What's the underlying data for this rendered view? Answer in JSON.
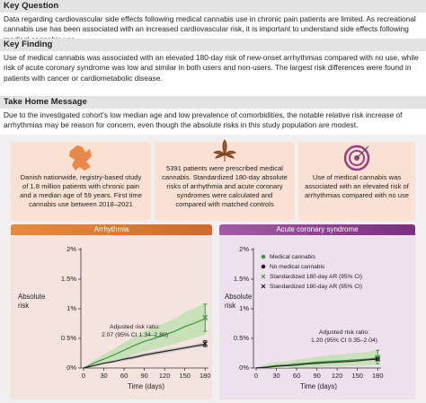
{
  "key_question": {
    "title": "Key Question",
    "text": "Data regarding cardiovascular side effects following medical cannabis use in chronic pain patients are limited. As recreational cannabis use has been associated with an increased cardiovascular risk, it is important to understand side effects following medical cannabis use."
  },
  "key_finding": {
    "title": "Key Finding",
    "text": "Use of medical cannabis was associated with an elevated 180-day risk of new-onset arrhythmias compared with no use, while risk of acute coronary syndrome was low and similar in both users and non-users. The largest risk differences were found in patients with cancer or cardiometabolic disease."
  },
  "take_home": {
    "title": "Take Home Message",
    "text": "Due to the investigated cohort's low median age and low prevalence of comorbidities, the notable relative risk increase of arrhythmias may be reason for concern, even though the absolute risks in this study population are modest."
  },
  "boxes": [
    "Danish nationwide, registry-based study of 1.8 million patients with chronic pain and a median age of 59 years. First time cannabis use between 2018–2021",
    "5391 patients were prescribed medical cannabis. Standardized 180-day absolute risks of arrhythmia and acute coronary syndromes were calculated and compared with matched controls",
    "Use of medical cannabis was associated with an elevated risk of arrhythmias compared with no use"
  ],
  "chart_data": [
    {
      "type": "line",
      "title": "Arrhythmia",
      "ylabel": "Absolute risk",
      "xlabel": "Time (days)",
      "annotation": [
        "Adjusted risk ratio:",
        "2.07 (95% CI 1.34–2.80)"
      ],
      "x": [
        0,
        15,
        30,
        45,
        60,
        75,
        90,
        105,
        120,
        135,
        150,
        165,
        180
      ],
      "xlim": [
        0,
        185
      ],
      "xticks": [
        0,
        30,
        60,
        90,
        120,
        150,
        180
      ],
      "ylim": [
        0,
        2
      ],
      "yticks": [
        {
          "value": 0,
          "label": "0%"
        },
        {
          "value": 0.5,
          "label": "0.5%"
        },
        {
          "value": 1,
          "label": "1%"
        },
        {
          "value": 1.5,
          "label": "1.5%"
        },
        {
          "value": 2,
          "label": "2%"
        }
      ],
      "series": [
        {
          "color": "#3d9a3d",
          "band_color": "#bfe0b2",
          "values": [
            0,
            0.08,
            0.15,
            0.22,
            0.3,
            0.38,
            0.45,
            0.5,
            0.56,
            0.62,
            0.7,
            0.76,
            0.83
          ],
          "ci_lower": [
            0,
            0.03,
            0.07,
            0.12,
            0.17,
            0.23,
            0.28,
            0.32,
            0.36,
            0.41,
            0.46,
            0.51,
            0.56
          ],
          "ci_upper": [
            0,
            0.13,
            0.23,
            0.32,
            0.43,
            0.53,
            0.62,
            0.68,
            0.76,
            0.83,
            0.94,
            1.01,
            1.1
          ],
          "standardized": {
            "x": 180,
            "value": 0.85,
            "lower": 0.62,
            "upper": 1.08
          }
        },
        {
          "color": "#222222",
          "band_color": "#c4c4c4",
          "values": [
            0,
            0.04,
            0.08,
            0.11,
            0.15,
            0.18,
            0.22,
            0.25,
            0.28,
            0.31,
            0.34,
            0.37,
            0.4
          ],
          "ci_lower": [
            0,
            0.03,
            0.06,
            0.09,
            0.12,
            0.15,
            0.19,
            0.22,
            0.25,
            0.28,
            0.31,
            0.34,
            0.36
          ],
          "ci_upper": [
            0,
            0.05,
            0.1,
            0.13,
            0.18,
            0.21,
            0.25,
            0.28,
            0.31,
            0.34,
            0.37,
            0.4,
            0.44
          ],
          "standardized": {
            "x": 180,
            "value": 0.41,
            "lower": 0.36,
            "upper": 0.46
          }
        }
      ]
    },
    {
      "type": "line",
      "title": "Acute coronary syndrome",
      "ylabel": "Absolute risk",
      "xlabel": "Time (days)",
      "annotation": [
        "Adjusted risk ratio:",
        "1.20 (95% CI 0.35–2.04)"
      ],
      "legend": "upper left",
      "x": [
        0,
        15,
        30,
        45,
        60,
        75,
        90,
        105,
        120,
        135,
        150,
        165,
        180
      ],
      "xlim": [
        0,
        185
      ],
      "xticks": [
        0,
        30,
        60,
        90,
        120,
        150,
        180
      ],
      "ylim": [
        0,
        2
      ],
      "yticks": [
        {
          "value": 0,
          "label": "0%"
        },
        {
          "value": 0.5,
          "label": "0.5%"
        },
        {
          "value": 1,
          "label": "1%"
        },
        {
          "value": 1.5,
          "label": "1.5%"
        },
        {
          "value": 2,
          "label": "2%"
        }
      ],
      "series": [
        {
          "name": "Medical cannabis",
          "color": "#3d9a3d",
          "band_color": "#bfe0b2",
          "values": [
            0,
            0.02,
            0.04,
            0.05,
            0.07,
            0.08,
            0.1,
            0.11,
            0.12,
            0.13,
            0.14,
            0.15,
            0.17
          ],
          "ci_lower": [
            0,
            0,
            0,
            0,
            0.01,
            0.01,
            0.02,
            0.03,
            0.03,
            0.04,
            0.04,
            0.05,
            0.06
          ],
          "ci_upper": [
            0,
            0.06,
            0.09,
            0.11,
            0.14,
            0.16,
            0.19,
            0.21,
            0.23,
            0.24,
            0.26,
            0.27,
            0.3
          ],
          "standardized": {
            "name": "Standardized 180-day AR (95% CI)",
            "x": 180,
            "value": 0.18,
            "lower": 0.07,
            "upper": 0.3
          }
        },
        {
          "name": "No medical cannabis",
          "color": "#222222",
          "band_color": "#c4c4c4",
          "values": [
            0,
            0.01,
            0.03,
            0.04,
            0.05,
            0.07,
            0.08,
            0.09,
            0.1,
            0.11,
            0.12,
            0.14,
            0.15
          ],
          "ci_lower": [
            0,
            0.01,
            0.02,
            0.03,
            0.04,
            0.06,
            0.07,
            0.08,
            0.09,
            0.1,
            0.11,
            0.12,
            0.13
          ],
          "ci_upper": [
            0,
            0.02,
            0.04,
            0.05,
            0.06,
            0.08,
            0.09,
            0.1,
            0.11,
            0.12,
            0.14,
            0.16,
            0.17
          ],
          "standardized": {
            "name": "Standardized 180-day AR (95% CI)",
            "x": 180,
            "value": 0.15,
            "lower": 0.13,
            "upper": 0.17
          }
        }
      ]
    }
  ]
}
